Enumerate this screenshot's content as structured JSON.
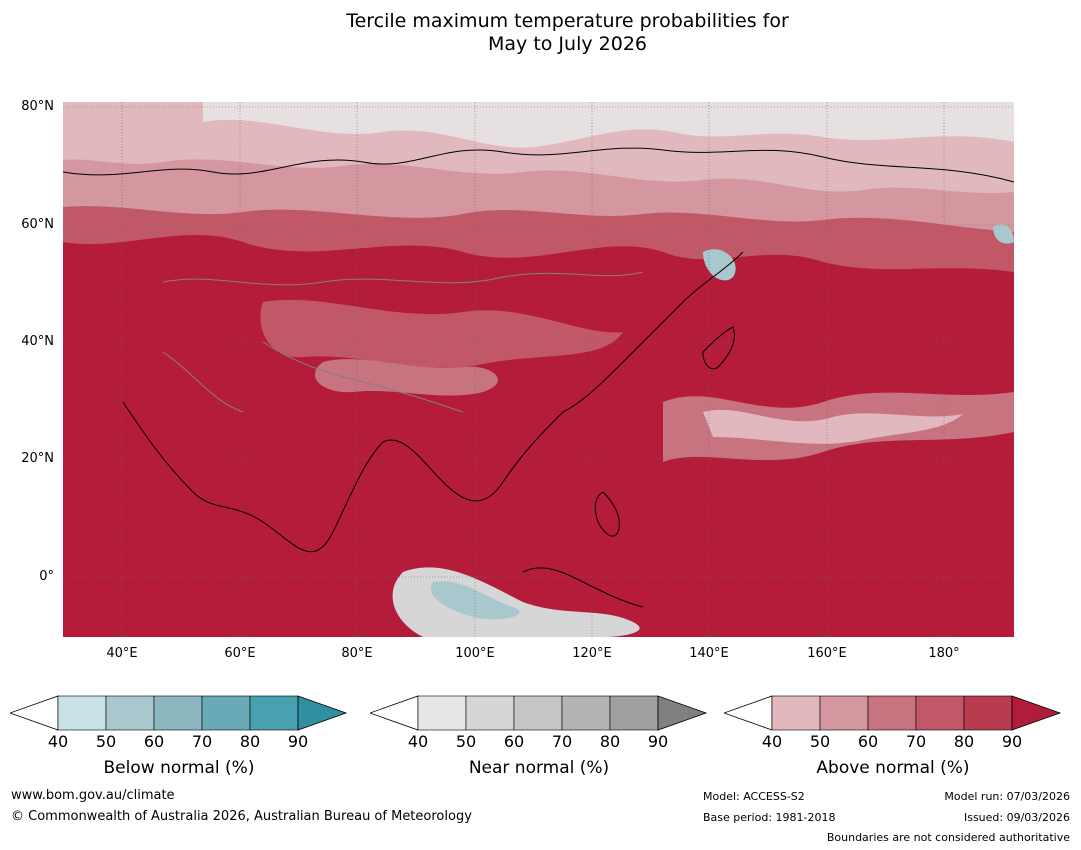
{
  "title": {
    "line1": "Tercile maximum temperature probabilities for",
    "line2": "May to July 2026"
  },
  "map": {
    "lat_labels": [
      "80°N",
      "60°N",
      "40°N",
      "20°N",
      "0°"
    ],
    "lon_labels": [
      "40°E",
      "60°E",
      "80°E",
      "100°E",
      "120°E",
      "140°E",
      "160°E",
      "180°"
    ],
    "extent": {
      "lon": [
        30,
        191
      ],
      "lat": [
        -10,
        81
      ]
    }
  },
  "colorbars": [
    {
      "label": "Below normal (%)",
      "ticks": [
        "40",
        "50",
        "60",
        "70",
        "80",
        "90"
      ],
      "colors": [
        "#c8e2e8",
        "#a8c8ce",
        "#8cb6c0",
        "#6aaab6",
        "#48a0b0",
        "#3090a0"
      ]
    },
    {
      "label": "Near normal (%)",
      "ticks": [
        "40",
        "50",
        "60",
        "70",
        "80",
        "90"
      ],
      "colors": [
        "#e6e6e6",
        "#d6d6d6",
        "#c6c6c6",
        "#b4b4b4",
        "#a0a0a0",
        "#808080"
      ]
    },
    {
      "label": "Above normal (%)",
      "ticks": [
        "40",
        "50",
        "60",
        "70",
        "80",
        "90"
      ],
      "colors": [
        "#e0b8be",
        "#d4979f",
        "#c87480",
        "#c05868",
        "#b83c4e",
        "#b01c3a"
      ]
    }
  ],
  "footer": {
    "website": "www.bom.gov.au/climate",
    "copyright": "© Commonwealth of Australia 2026, Australian Bureau of Meteorology",
    "model": "Model: ACCESS-S2",
    "base_period": "Base period: 1981-2018",
    "model_run": "Model run: 07/03/2026",
    "issued": "Issued: 09/03/2026",
    "disclaimer": "Boundaries are not considered authoritative"
  }
}
